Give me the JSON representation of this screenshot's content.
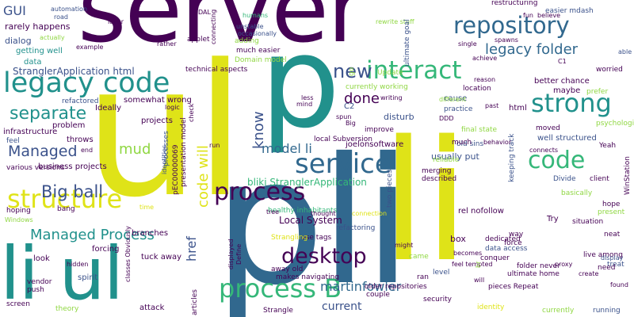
{
  "palette": {
    "purple": "#440154",
    "indigo": "#3b528b",
    "blue": "#31688e",
    "teal": "#21918c",
    "green": "#35b779",
    "lime": "#90d743",
    "yellow": "#dfe318"
  },
  "words": [
    "server",
    "ul",
    "pli",
    "p",
    "li",
    "li ul",
    "legacy code",
    "structure",
    "process",
    "service",
    "process B",
    "desktop",
    "interact",
    "repository",
    "strong",
    "code",
    "new",
    "separate",
    "Big ball",
    "Managed Process",
    "Managed",
    "legacy folder",
    "code will",
    "done",
    "href",
    "mud",
    "know",
    "model li",
    "martinfowler",
    "current",
    "Local System",
    "StranglerApplication html",
    "bliki StranglerApplication",
    "GUI",
    "rarely happens",
    "dialog",
    "getting well",
    "data",
    "automation",
    "road",
    "layer",
    "DAL",
    "humans",
    "unstable",
    "occasionally",
    "much easier",
    "technical aspects",
    "Domain model",
    "restructuring",
    "easier mdash",
    "fun",
    "believe",
    "worried",
    "better chance",
    "well structured",
    "moved",
    "Yeah",
    "client",
    "Divide",
    "basically",
    "keeping track",
    "final state",
    "old sins",
    "much",
    "two pieces",
    "local Subversion",
    "healthy inhabitants",
    "refactoring",
    "use tags",
    "away old",
    "makes navigating",
    "older repositories",
    "couple",
    "Strangle",
    "pieces Repeat",
    "ultimate home",
    "folder never",
    "data access",
    "dedicated",
    "conquer",
    "live among",
    "treat",
    "need",
    "running",
    "currently",
    "situation",
    "neat",
    "present",
    "hope",
    "force",
    "way",
    "box",
    "rel nofollow",
    "Try",
    "proxy",
    "identity",
    "security",
    "level",
    "ran",
    "came",
    "becomes",
    "feel tempted",
    "theory",
    "screen",
    "vendor",
    "push",
    "look",
    "spirit",
    "forcing",
    "tuck away",
    "branches",
    "attack",
    "bang",
    "hoping",
    "Windows",
    "hidden",
    "classes Obviously",
    "articles",
    "pEC00000069",
    "presentation model",
    "processes",
    "identities",
    "displayed",
    "Define",
    "Strangling",
    "business projects",
    "various versions",
    "infrastructure",
    "feel",
    "problem",
    "throws",
    "end",
    "run",
    "projects",
    "somewhat wrong",
    "Ideally",
    "logic",
    "refactored",
    "Update",
    "currently working",
    "C2",
    "writing",
    "spun",
    "Big",
    "disturb",
    "improve",
    "joelonsoftware",
    "usually put",
    "described",
    "merging",
    "reliable",
    "DDD",
    "practice",
    "cause",
    "past",
    "html",
    "location",
    "maybe",
    "prefer",
    "psychological aspect",
    "WinStation",
    "reason",
    "achieve",
    "C1",
    "able",
    "single",
    "spawns",
    "rewrite stuff",
    "ultimate goal",
    "go",
    "mind",
    "less",
    "different",
    "adding",
    "applet",
    "rather",
    "connecting",
    "actually",
    "example",
    "behavior",
    "connects",
    "check",
    "time",
    "connection",
    "tree",
    "thought",
    "might",
    "br",
    "will",
    "create",
    "display",
    "found"
  ]
}
